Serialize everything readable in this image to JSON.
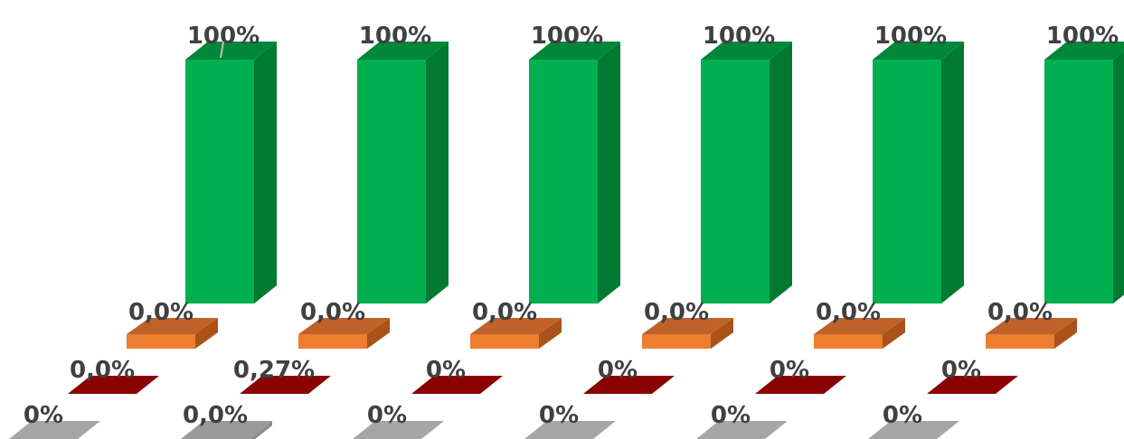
{
  "chart_data": {
    "type": "bar",
    "style": "3d-column",
    "grid": false,
    "legend": "none",
    "title": "",
    "xlabel": "",
    "ylabel": "",
    "ylim": [
      0,
      100
    ],
    "categories": [
      "",
      "",
      "",
      "",
      "",
      ""
    ],
    "series": [
      {
        "color": "#00B050",
        "side_color": "#007A33",
        "top_color": "#00873A",
        "values": [
          100,
          100,
          100,
          100,
          100,
          100
        ],
        "labels": [
          "100%",
          "100%",
          "100%",
          "100%",
          "100%",
          "100%"
        ]
      },
      {
        "color": "#ED7D31",
        "side_color": "#A9531B",
        "top_color": "#C0612A",
        "values": [
          0,
          0,
          0,
          0,
          0,
          0
        ],
        "labels": [
          "0,0%",
          "0,0%",
          "0,0%",
          "0,0%",
          "0,0%",
          "0,0%"
        ]
      },
      {
        "color": "#9E0000",
        "side_color": "#6B0000",
        "top_color": "#8B0000",
        "values": [
          0,
          0.27,
          0,
          0,
          0,
          0
        ],
        "labels": [
          "0,0%",
          "0,27%",
          "0%",
          "0%",
          "0%",
          "0%"
        ]
      },
      {
        "color": "#A6A6A6",
        "side_color": "#7F7F7F",
        "top_color": "#A6A6A6",
        "values": [
          0,
          0,
          0,
          0,
          0,
          0
        ],
        "labels": [
          "0%",
          "0,0%",
          "0%",
          "0%",
          "0%",
          "0%"
        ]
      }
    ]
  }
}
